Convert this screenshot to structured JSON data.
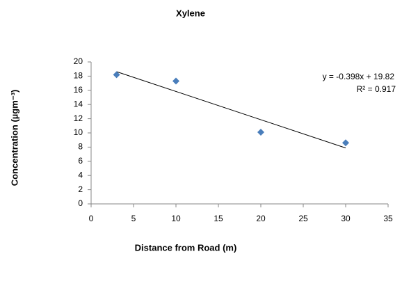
{
  "chart_data": {
    "type": "scatter",
    "title": "Xylene",
    "x_label": "Distance from Road (m)",
    "y_label": "Concentration (µgm⁻³)",
    "x": [
      3,
      10,
      20,
      30
    ],
    "values": [
      18.2,
      17.3,
      10.1,
      8.6
    ],
    "color": "#4a7ebb",
    "xlim": [
      0,
      35
    ],
    "xticks": [
      0,
      5,
      10,
      15,
      20,
      25,
      30,
      35
    ],
    "ylim": [
      0,
      20
    ],
    "yticks": [
      0,
      2,
      4,
      6,
      8,
      10,
      12,
      14,
      16,
      18,
      20
    ],
    "grid": false,
    "trendline": {
      "slope": -0.398,
      "intercept": 19.82,
      "equation_label": "y = -0.398x + 19.82",
      "r2_label": "R² = 0.917",
      "color": "#000000"
    }
  }
}
